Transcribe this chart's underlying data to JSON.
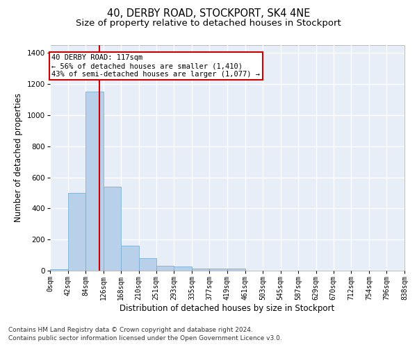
{
  "title": "40, DERBY ROAD, STOCKPORT, SK4 4NE",
  "subtitle": "Size of property relative to detached houses in Stockport",
  "xlabel": "Distribution of detached houses by size in Stockport",
  "ylabel": "Number of detached properties",
  "bar_edges": [
    0,
    42,
    84,
    126,
    168,
    210,
    251,
    293,
    335,
    377,
    419,
    461,
    503,
    545,
    587,
    629,
    670,
    712,
    754,
    796,
    838
  ],
  "bar_heights": [
    10,
    500,
    1150,
    540,
    160,
    80,
    33,
    25,
    15,
    15,
    12,
    0,
    0,
    0,
    0,
    0,
    0,
    0,
    0,
    0
  ],
  "bar_color": "#b8d0ea",
  "bar_edge_color": "#7aafd4",
  "property_size": 117,
  "vline_color": "#cc0000",
  "annotation_text": "40 DERBY ROAD: 117sqm\n← 56% of detached houses are smaller (1,410)\n43% of semi-detached houses are larger (1,077) →",
  "annotation_box_color": "#ffffff",
  "annotation_box_edge": "#cc0000",
  "ylim": [
    0,
    1450
  ],
  "yticks": [
    0,
    200,
    400,
    600,
    800,
    1000,
    1200,
    1400
  ],
  "tick_labels": [
    "0sqm",
    "42sqm",
    "84sqm",
    "126sqm",
    "168sqm",
    "210sqm",
    "251sqm",
    "293sqm",
    "335sqm",
    "377sqm",
    "419sqm",
    "461sqm",
    "503sqm",
    "545sqm",
    "587sqm",
    "629sqm",
    "670sqm",
    "712sqm",
    "754sqm",
    "796sqm",
    "838sqm"
  ],
  "footer_line1": "Contains HM Land Registry data © Crown copyright and database right 2024.",
  "footer_line2": "Contains public sector information licensed under the Open Government Licence v3.0.",
  "background_color": "#e8eef8",
  "grid_color": "#ffffff",
  "title_fontsize": 10.5,
  "subtitle_fontsize": 9.5,
  "axis_label_fontsize": 8.5,
  "tick_fontsize": 7,
  "footer_fontsize": 6.5,
  "annotation_fontsize": 7.5
}
